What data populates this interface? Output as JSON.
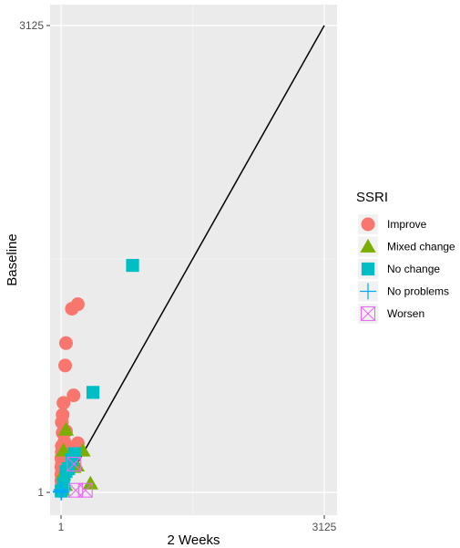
{
  "chart_data": {
    "type": "scatter",
    "xlabel": "2 Weeks",
    "ylabel": "Baseline",
    "xticks": [
      "1",
      "3125"
    ],
    "yticks": [
      "3125",
      "1"
    ],
    "xlim": [
      1,
      3125
    ],
    "ylim": [
      1,
      3125
    ],
    "grid": true,
    "panel_background": "#ebebeb",
    "legend": {
      "title": "SSRI",
      "position": "right"
    },
    "reference_line": {
      "from": [
        1,
        1
      ],
      "to": [
        3125,
        3125
      ],
      "color": "#000000"
    },
    "series": [
      {
        "name": "Improve",
        "shape": "circle",
        "color": "#f8766d",
        "points": [
          [
            200,
            1260
          ],
          [
            130,
            1230
          ],
          [
            60,
            1000
          ],
          [
            50,
            850
          ],
          [
            150,
            650
          ],
          [
            30,
            600
          ],
          [
            20,
            520
          ],
          [
            10,
            470
          ],
          [
            60,
            410
          ],
          [
            20,
            400
          ],
          [
            40,
            340
          ],
          [
            200,
            330
          ],
          [
            10,
            310
          ],
          [
            100,
            300
          ],
          [
            30,
            280
          ],
          [
            10,
            270
          ],
          [
            40,
            250
          ],
          [
            5,
            230
          ],
          [
            20,
            210
          ],
          [
            10,
            190
          ],
          [
            5,
            170
          ],
          [
            30,
            160
          ],
          [
            10,
            140
          ],
          [
            5,
            120
          ],
          [
            15,
            100
          ],
          [
            5,
            80
          ],
          [
            20,
            60
          ],
          [
            5,
            40
          ],
          [
            10,
            20
          ],
          [
            2,
            10
          ]
        ]
      },
      {
        "name": "Mixed change",
        "shape": "triangle",
        "color": "#7cae00",
        "points": [
          [
            60,
            420
          ],
          [
            30,
            280
          ],
          [
            260,
            280
          ],
          [
            190,
            180
          ],
          [
            150,
            170
          ],
          [
            80,
            170
          ],
          [
            40,
            140
          ],
          [
            30,
            120
          ],
          [
            350,
            60
          ],
          [
            50,
            50
          ],
          [
            15,
            20
          ]
        ]
      },
      {
        "name": "No change",
        "shape": "square",
        "color": "#00bfc4",
        "points": [
          [
            850,
            1520
          ],
          [
            380,
            670
          ],
          [
            160,
            260
          ],
          [
            130,
            220
          ],
          [
            90,
            160
          ],
          [
            60,
            140
          ],
          [
            30,
            60
          ],
          [
            5,
            10
          ]
        ]
      },
      {
        "name": "No problems",
        "shape": "plus",
        "color": "#00a9ff",
        "points": [
          [
            2,
            5
          ],
          [
            5,
            10
          ],
          [
            10,
            20
          ],
          [
            1,
            2
          ],
          [
            8,
            3
          ]
        ]
      },
      {
        "name": "Worsen",
        "shape": "boxx",
        "color": "#e76bf3",
        "points": [
          [
            175,
            15
          ],
          [
            290,
            15
          ],
          [
            155,
            190
          ]
        ]
      }
    ]
  }
}
